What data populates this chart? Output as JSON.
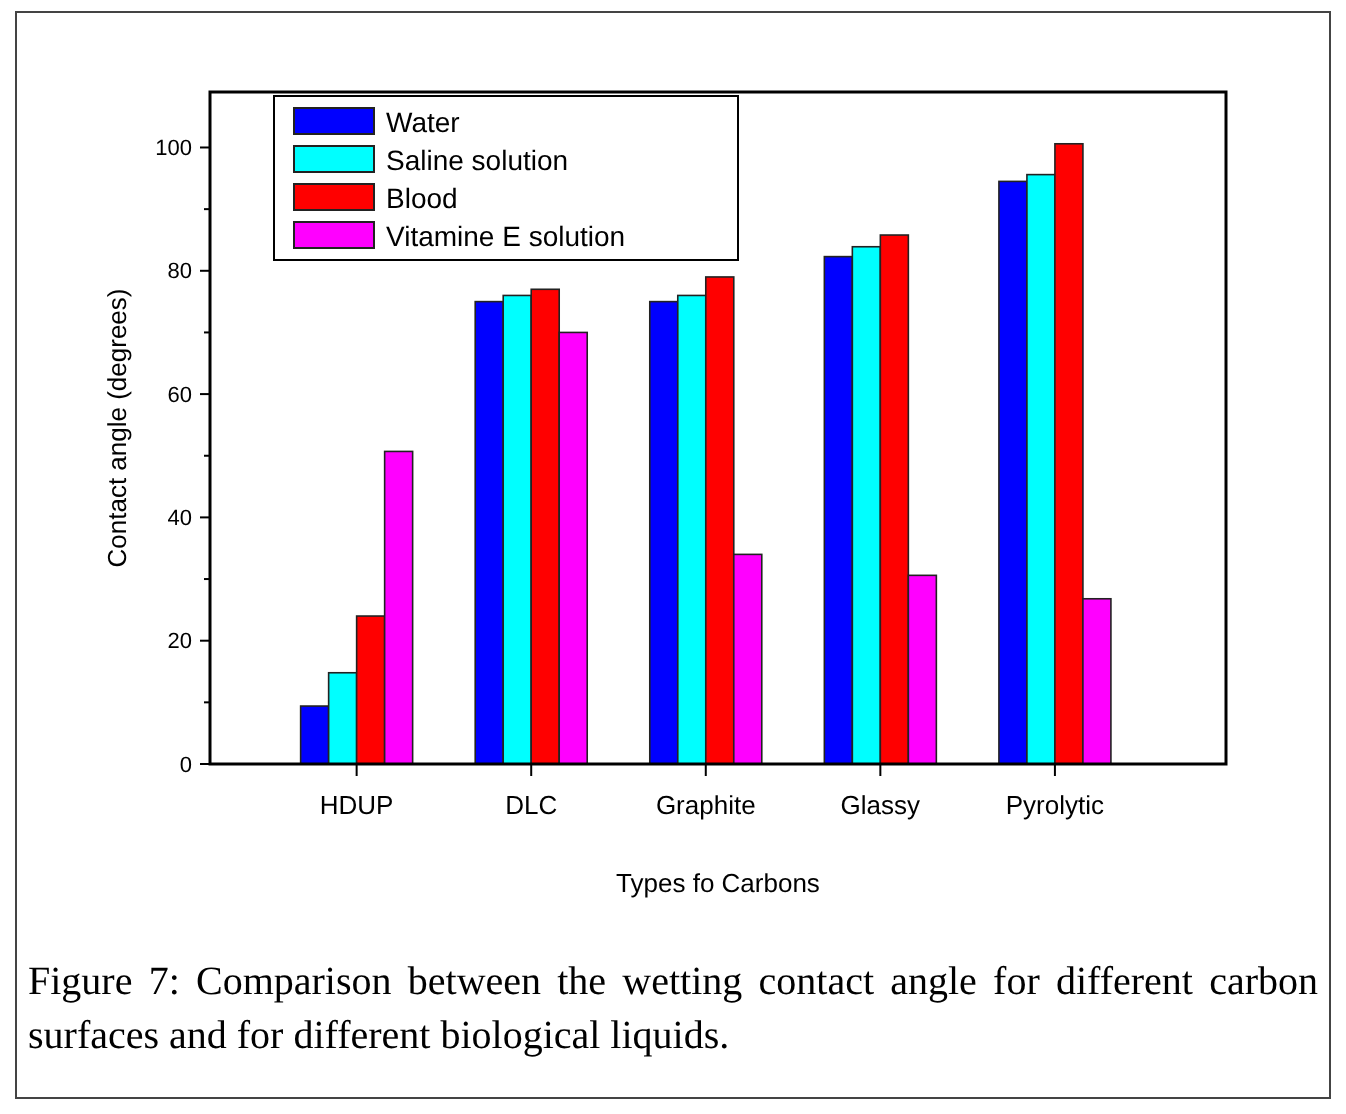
{
  "chart_data": {
    "type": "bar",
    "xlabel": "Types fo Carbons",
    "ylabel": "Contact angle (degrees)",
    "categories": [
      "HDUP",
      "DLC",
      "Graphite",
      "Glassy",
      "Pyrolytic"
    ],
    "series": [
      {
        "name": "Water",
        "color": "#0000ff",
        "values": [
          9.4,
          75,
          75,
          82.3,
          94.5
        ]
      },
      {
        "name": "Saline solution",
        "color": "#00ffff",
        "values": [
          14.8,
          76,
          76,
          83.9,
          95.6
        ]
      },
      {
        "name": "Blood",
        "color": "#ff0000",
        "values": [
          24,
          77,
          79,
          85.8,
          100.6
        ]
      },
      {
        "name": "Vitamine E solution",
        "color": "#ff00ff",
        "values": [
          50.7,
          70,
          34,
          30.6,
          26.8
        ]
      }
    ],
    "ylim": [
      0,
      109
    ],
    "yticks": [
      0,
      {
        "value": 10,
        "label": null
      },
      20,
      {
        "value": 30,
        "label": null
      },
      40,
      {
        "value": 50,
        "label": null
      },
      60,
      {
        "value": 70,
        "label": null
      },
      80,
      {
        "value": 90,
        "label": null
      },
      100
    ],
    "grid": false,
    "legend": "top left",
    "annotations": [
      "Figure 7: Comparison between the wetting contact angle for different carbon surfaces and for different biological liquids."
    ]
  }
}
